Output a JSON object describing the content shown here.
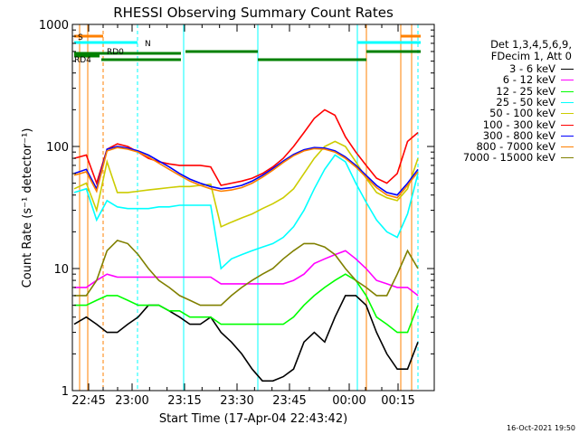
{
  "chart_data": {
    "type": "line",
    "title": "RHESSI Observing Summary Count Rates",
    "xlabel": "Start Time (17-Apr-04 22:43:42)",
    "ylabel": "Count Rate (s⁻¹ detector⁻¹)",
    "yscale": "log",
    "ylim": [
      1,
      1000
    ],
    "xlim_minutes": [
      -3.7,
      18.8
    ],
    "x_ticks": [
      "22:45",
      "23:00",
      "23:15",
      "23:30",
      "23:45",
      "00:00",
      "00:15"
    ],
    "y_ticks": [
      "1",
      "10",
      "100",
      "1000"
    ],
    "footer": "16-Oct-2021 19:50",
    "legend": {
      "header": [
        "Det 1,3,4,5,6,9,",
        "FDecim 1, Att 0"
      ],
      "placement": "right"
    },
    "flags": [
      {
        "label": "S",
        "color": "#ff8000"
      },
      {
        "label": "N",
        "color": "#00ffff"
      },
      {
        "label": "RD0",
        "color": "#008000"
      },
      {
        "label": "RD4",
        "color": "#008000"
      }
    ],
    "series": [
      {
        "name": "3 - 6 keV",
        "color": "#000000",
        "x": [
          -3.5,
          0,
          3,
          6,
          9,
          12,
          15,
          18,
          21,
          24,
          27,
          30,
          33,
          36,
          39,
          42,
          45,
          48,
          51,
          54,
          57,
          60,
          63,
          66,
          69,
          72,
          75,
          78,
          81,
          84,
          87,
          90,
          93,
          96
        ],
        "y": [
          3.5,
          4,
          3.5,
          3,
          3,
          3.5,
          4,
          5,
          5,
          4.5,
          4,
          3.5,
          3.5,
          4,
          3,
          2.5,
          2,
          1.5,
          1.2,
          1.2,
          1.3,
          1.5,
          2.5,
          3,
          2.5,
          4,
          6,
          6,
          5,
          3,
          2,
          1.5,
          1.5,
          2.5
        ]
      },
      {
        "name": "6 - 12 keV",
        "color": "#ff00ff",
        "x": [
          -3.5,
          0,
          3,
          6,
          9,
          12,
          15,
          18,
          21,
          24,
          27,
          30,
          33,
          36,
          39,
          42,
          45,
          48,
          51,
          54,
          57,
          60,
          63,
          66,
          69,
          72,
          75,
          78,
          81,
          84,
          87,
          90,
          93,
          96
        ],
        "y": [
          7,
          7,
          8,
          9,
          8.5,
          8.5,
          8.5,
          8.5,
          8.5,
          8.5,
          8.5,
          8.5,
          8.5,
          8.5,
          7.5,
          7.5,
          7.5,
          7.5,
          7.5,
          7.5,
          7.5,
          8,
          9,
          11,
          12,
          13,
          14,
          12,
          10,
          8,
          7.5,
          7,
          7,
          6
        ]
      },
      {
        "name": "12 - 25 keV",
        "color": "#00ff00",
        "x": [
          -3.5,
          0,
          3,
          6,
          9,
          12,
          15,
          18,
          21,
          24,
          27,
          30,
          33,
          36,
          39,
          42,
          45,
          48,
          51,
          54,
          57,
          60,
          63,
          66,
          69,
          72,
          75,
          78,
          81,
          84,
          87,
          90,
          93,
          96
        ],
        "y": [
          5,
          5,
          5.5,
          6,
          6,
          5.5,
          5,
          5,
          5,
          4.5,
          4.5,
          4,
          4,
          4,
          3.5,
          3.5,
          3.5,
          3.5,
          3.5,
          3.5,
          3.5,
          4,
          5,
          6,
          7,
          8,
          9,
          8,
          6,
          4,
          3.5,
          3,
          3,
          5
        ]
      },
      {
        "name": "25 - 50 keV",
        "color": "#00ffff",
        "x": [
          -3.5,
          0,
          3,
          6,
          9,
          12,
          15,
          18,
          21,
          24,
          27,
          30,
          33,
          36,
          39,
          42,
          45,
          48,
          51,
          54,
          57,
          60,
          63,
          66,
          69,
          72,
          75,
          78,
          81,
          84,
          87,
          90,
          93,
          96
        ],
        "y": [
          42,
          45,
          25,
          36,
          32,
          31,
          31,
          31,
          32,
          32,
          33,
          33,
          33,
          33,
          10,
          12,
          13,
          14,
          15,
          16,
          18,
          22,
          30,
          45,
          65,
          85,
          75,
          50,
          35,
          25,
          20,
          18,
          28,
          60
        ]
      },
      {
        "name": "50 - 100 keV",
        "color": "#cccc00",
        "x": [
          -3.5,
          0,
          3,
          6,
          9,
          12,
          15,
          18,
          21,
          24,
          27,
          30,
          33,
          36,
          39,
          42,
          45,
          48,
          51,
          54,
          57,
          60,
          63,
          66,
          69,
          72,
          75,
          78,
          81,
          84,
          87,
          90,
          93,
          96
        ],
        "y": [
          45,
          50,
          30,
          75,
          42,
          42,
          43,
          44,
          45,
          46,
          47,
          47,
          48,
          49,
          22,
          24,
          26,
          28,
          31,
          34,
          38,
          45,
          60,
          80,
          100,
          110,
          100,
          75,
          55,
          42,
          38,
          36,
          45,
          80
        ]
      },
      {
        "name": "100 - 300 keV",
        "color": "#ff0000",
        "x": [
          -3.5,
          0,
          3,
          6,
          9,
          12,
          15,
          18,
          21,
          24,
          27,
          30,
          33,
          36,
          39,
          42,
          45,
          48,
          51,
          54,
          57,
          60,
          63,
          66,
          69,
          72,
          75,
          78,
          81,
          84,
          87,
          90,
          93,
          96
        ],
        "y": [
          80,
          85,
          50,
          95,
          105,
          100,
          90,
          80,
          75,
          72,
          70,
          70,
          70,
          68,
          48,
          50,
          52,
          55,
          60,
          68,
          80,
          100,
          130,
          170,
          200,
          180,
          120,
          90,
          70,
          55,
          50,
          60,
          110,
          130
        ]
      },
      {
        "name": "300 - 800 keV",
        "color": "#0000ff",
        "x": [
          -3.5,
          0,
          3,
          6,
          9,
          12,
          15,
          18,
          21,
          24,
          27,
          30,
          33,
          36,
          39,
          42,
          45,
          48,
          51,
          54,
          57,
          60,
          63,
          66,
          69,
          72,
          75,
          78,
          81,
          84,
          87,
          90,
          93,
          96
        ],
        "y": [
          60,
          65,
          45,
          95,
          100,
          97,
          92,
          85,
          76,
          68,
          60,
          54,
          50,
          47,
          45,
          46,
          48,
          52,
          58,
          66,
          76,
          86,
          94,
          98,
          97,
          92,
          82,
          70,
          58,
          48,
          42,
          40,
          50,
          65
        ]
      },
      {
        "name": "800 - 7000 keV",
        "color": "#ff8000",
        "x": [
          -3.5,
          0,
          3,
          6,
          9,
          12,
          15,
          18,
          21,
          24,
          27,
          30,
          33,
          36,
          39,
          42,
          45,
          48,
          51,
          54,
          57,
          60,
          63,
          66,
          69,
          72,
          75,
          78,
          81,
          84,
          87,
          90,
          93,
          96
        ],
        "y": [
          58,
          62,
          43,
          92,
          98,
          95,
          90,
          82,
          73,
          65,
          58,
          52,
          48,
          45,
          43,
          44,
          46,
          50,
          56,
          64,
          74,
          84,
          92,
          96,
          95,
          90,
          80,
          68,
          56,
          46,
          40,
          38,
          48,
          62
        ]
      },
      {
        "name": "7000 - 15000 keV",
        "color": "#808000",
        "x": [
          -3.5,
          0,
          3,
          6,
          9,
          12,
          15,
          18,
          21,
          24,
          27,
          30,
          33,
          36,
          39,
          42,
          45,
          48,
          51,
          54,
          57,
          60,
          63,
          66,
          69,
          72,
          75,
          78,
          81,
          84,
          87,
          90,
          93,
          96
        ],
        "y": [
          6,
          6,
          8,
          14,
          17,
          16,
          13,
          10,
          8,
          7,
          6,
          5.5,
          5,
          5,
          5,
          6,
          7,
          8,
          9,
          10,
          12,
          14,
          16,
          16,
          15,
          13,
          10,
          8,
          7,
          6,
          6,
          9,
          14,
          10
        ]
      }
    ]
  }
}
